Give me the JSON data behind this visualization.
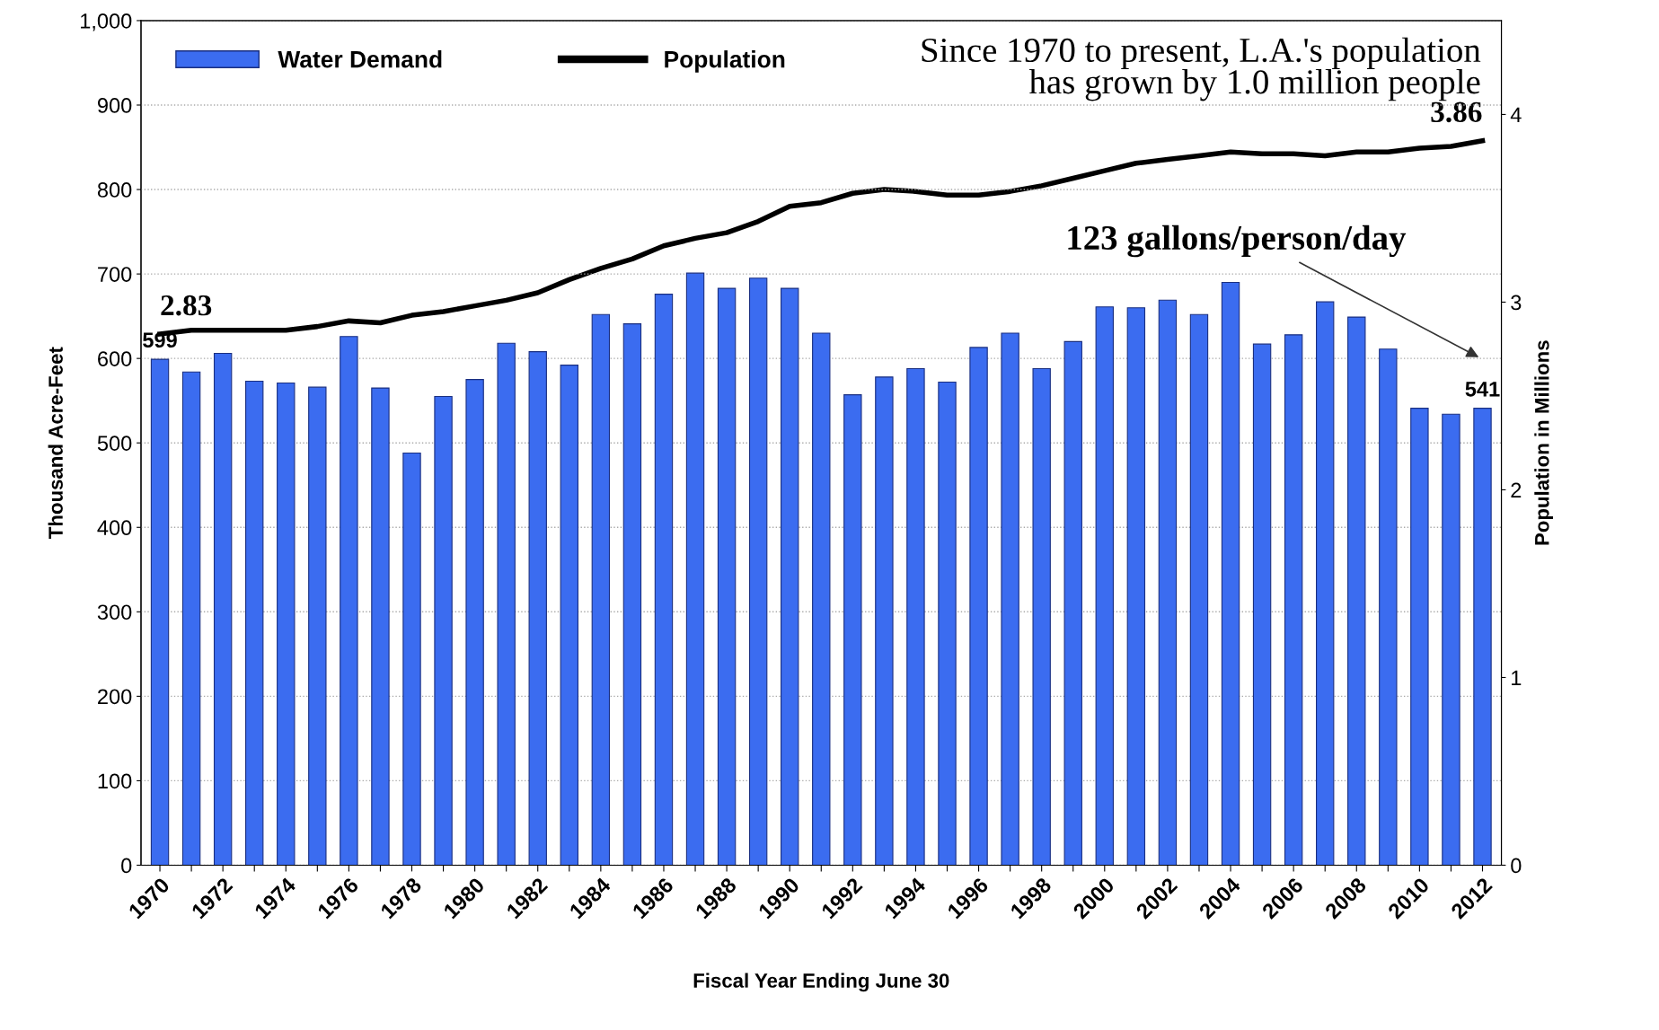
{
  "chart_data": {
    "type": "bar",
    "xlabel": "Fiscal Year Ending June 30",
    "ylabel": "Thousand Acre-Feet",
    "y2label": "Population in Millions",
    "categories": [
      "1970",
      null,
      "1972",
      null,
      "1974",
      null,
      "1976",
      null,
      "1978",
      null,
      "1980",
      null,
      "1982",
      null,
      "1984",
      null,
      "1986",
      null,
      "1988",
      null,
      "1990",
      null,
      "1992",
      null,
      "1994",
      null,
      "1996",
      null,
      "1998",
      null,
      "2000",
      null,
      "2002",
      null,
      "2004",
      null,
      "2006",
      null,
      "2008",
      null,
      "2010",
      null,
      "2012"
    ],
    "series": [
      {
        "name": "Water Demand",
        "color": "#3b6cf0",
        "values": [
          599,
          584,
          606,
          573,
          571,
          566,
          626,
          565,
          488,
          555,
          575,
          618,
          608,
          592,
          652,
          641,
          676,
          701,
          683,
          695,
          683,
          630,
          557,
          578,
          588,
          572,
          613,
          630,
          588,
          620,
          661,
          660,
          669,
          652,
          690,
          617,
          628,
          667,
          649,
          611,
          541,
          534,
          541
        ],
        "value_labels": [
          "599",
          null,
          null,
          null,
          null,
          null,
          null,
          null,
          null,
          null,
          null,
          null,
          null,
          null,
          null,
          null,
          null,
          null,
          null,
          null,
          null,
          null,
          null,
          null,
          null,
          null,
          null,
          null,
          null,
          null,
          null,
          null,
          null,
          null,
          null,
          null,
          null,
          null,
          null,
          null,
          null,
          null,
          "541"
        ]
      },
      {
        "name": "Population",
        "type": "line",
        "axis": "y2",
        "color": "#000000",
        "values": [
          2.83,
          2.85,
          2.85,
          2.85,
          2.85,
          2.87,
          2.9,
          2.89,
          2.93,
          2.95,
          2.98,
          3.01,
          3.05,
          3.12,
          3.18,
          3.23,
          3.3,
          3.34,
          3.37,
          3.43,
          3.51,
          3.53,
          3.58,
          3.6,
          3.59,
          3.57,
          3.57,
          3.59,
          3.62,
          3.66,
          3.7,
          3.74,
          3.76,
          3.78,
          3.8,
          3.79,
          3.79,
          3.78,
          3.8,
          3.8,
          3.82,
          3.83,
          3.86
        ],
        "value_labels": [
          "2.83",
          null,
          null,
          null,
          null,
          null,
          null,
          null,
          null,
          null,
          null,
          null,
          null,
          null,
          null,
          null,
          null,
          null,
          null,
          null,
          null,
          null,
          null,
          null,
          null,
          null,
          null,
          null,
          null,
          null,
          null,
          null,
          null,
          null,
          null,
          null,
          null,
          null,
          null,
          null,
          null,
          null,
          "3.86"
        ]
      }
    ],
    "ylim": [
      0,
      1000
    ],
    "yticks": [
      0,
      100,
      200,
      300,
      400,
      500,
      600,
      700,
      800,
      900,
      {
        "value": 1000,
        "label": "1,000"
      }
    ],
    "y2lim": [
      0,
      4.5
    ],
    "y2ticks": [
      0,
      1,
      2,
      3,
      4
    ],
    "grid": "y",
    "legend": "top left",
    "marker": "none",
    "line_style": "solid",
    "annotations": [
      "Since 1970 to present, L.A.'s population\nhas grown by 1.0 million people",
      "123 gallons/person/day"
    ]
  }
}
